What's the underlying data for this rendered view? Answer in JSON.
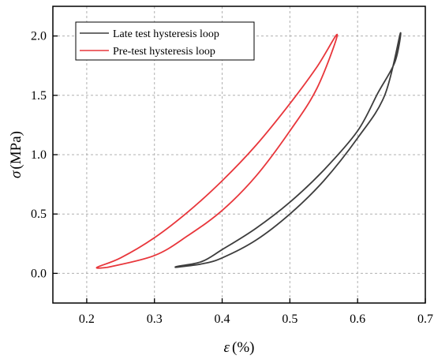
{
  "chart_data": {
    "type": "line",
    "xlabel_symbol": "ε",
    "xlabel_unit": "(%)",
    "ylabel_symbol": "σ",
    "ylabel_unit": "(MPa)",
    "xlim": [
      0.15,
      0.7
    ],
    "ylim": [
      -0.25,
      2.25
    ],
    "x_ticks": [
      0.2,
      0.3,
      0.4,
      0.5,
      0.6,
      0.7
    ],
    "x_tick_labels": [
      "0.2",
      "0.3",
      "0.4",
      "0.5",
      "0.6",
      "0.7"
    ],
    "y_ticks": [
      0.0,
      0.5,
      1.0,
      1.5,
      2.0
    ],
    "y_tick_labels": [
      "0.0",
      "0.5",
      "1.0",
      "1.5",
      "2.0"
    ],
    "grid": true,
    "legend_position": "top-left",
    "series": [
      {
        "name": "Late test hysteresis loop",
        "color": "#3d3d3d",
        "x": [
          0.33,
          0.37,
          0.4,
          0.45,
          0.5,
          0.55,
          0.6,
          0.64,
          0.663,
          0.655,
          0.63,
          0.6,
          0.55,
          0.5,
          0.45,
          0.4,
          0.37,
          0.335,
          0.33
        ],
        "y": [
          0.05,
          0.08,
          0.13,
          0.28,
          0.5,
          0.78,
          1.14,
          1.5,
          2.02,
          1.78,
          1.52,
          1.2,
          0.87,
          0.6,
          0.38,
          0.2,
          0.1,
          0.06,
          0.05
        ]
      },
      {
        "name": "Pre-test hysteresis loop",
        "color": "#e8363b",
        "x": [
          0.23,
          0.3,
          0.35,
          0.4,
          0.45,
          0.5,
          0.54,
          0.57,
          0.54,
          0.5,
          0.45,
          0.4,
          0.35,
          0.3,
          0.25,
          0.215,
          0.23
        ],
        "y": [
          0.05,
          0.15,
          0.32,
          0.53,
          0.82,
          1.2,
          1.56,
          2.01,
          1.74,
          1.43,
          1.08,
          0.78,
          0.52,
          0.3,
          0.13,
          0.05,
          0.05
        ]
      }
    ]
  }
}
